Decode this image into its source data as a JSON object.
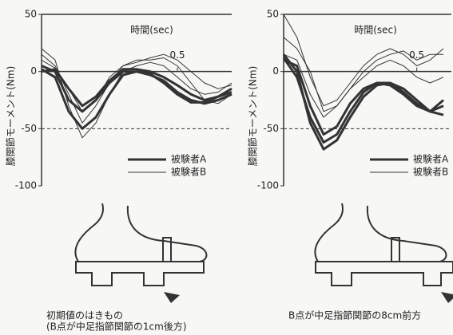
{
  "chart_data": [
    {
      "type": "line",
      "x_label": "時間(sec)",
      "y_label": "膝関節モーメント(Nm)",
      "xlim": [
        0,
        0.7
      ],
      "xticks": [
        0.5
      ],
      "ylim": [
        -100,
        50
      ],
      "yticks": [
        50,
        0,
        -50,
        -100
      ],
      "ref_line": -50,
      "legend": "lower right",
      "x": [
        0,
        0.05,
        0.1,
        0.15,
        0.2,
        0.25,
        0.3,
        0.35,
        0.4,
        0.45,
        0.5,
        0.55,
        0.6,
        0.65,
        0.7
      ],
      "series": [
        {
          "name": "被験者A",
          "color": "#333333",
          "width": 3,
          "curves": [
            [
              5,
              0,
              -25,
              -35,
              -25,
              -10,
              0,
              0,
              -3,
              -8,
              -18,
              -25,
              -28,
              -25,
              -20
            ],
            [
              2,
              -5,
              -35,
              -50,
              -40,
              -20,
              -3,
              0,
              -2,
              -10,
              -20,
              -27,
              -27,
              -22,
              -18
            ],
            [
              0,
              2,
              -15,
              -30,
              -22,
              -8,
              2,
              2,
              0,
              -5,
              -12,
              -20,
              -25,
              -22,
              -15
            ]
          ]
        },
        {
          "name": "被験者B",
          "color": "#333333",
          "width": 1,
          "curves": [
            [
              20,
              10,
              -30,
              -58,
              -45,
              -20,
              0,
              5,
              8,
              5,
              -5,
              -15,
              -20,
              -18,
              -10
            ],
            [
              15,
              5,
              -20,
              -45,
              -30,
              -10,
              5,
              8,
              12,
              15,
              10,
              0,
              -10,
              -15,
              -12
            ],
            [
              10,
              3,
              -15,
              -35,
              -25,
              -5,
              5,
              10,
              10,
              12,
              5,
              -10,
              -25,
              -28,
              -20
            ]
          ]
        }
      ],
      "caption": [
        "初期値のはきもの",
        "(B点が中足指節関節の1cm後方)"
      ]
    },
    {
      "type": "line",
      "x_label": "時間(sec)",
      "y_label": "膝関節モーメント(Nm)",
      "xlim": [
        0,
        0.63
      ],
      "xticks": [
        0.5
      ],
      "ylim": [
        -100,
        50
      ],
      "yticks": [
        50,
        0,
        -50,
        -100
      ],
      "ref_line": -50,
      "legend": "lower right",
      "x": [
        0,
        0.05,
        0.1,
        0.15,
        0.2,
        0.25,
        0.3,
        0.35,
        0.4,
        0.45,
        0.5,
        0.55,
        0.6
      ],
      "series": [
        {
          "name": "被験者A",
          "color": "#333333",
          "width": 3,
          "curves": [
            [
              15,
              0,
              -45,
              -68,
              -60,
              -40,
              -22,
              -12,
              -10,
              -15,
              -25,
              -35,
              -38
            ],
            [
              12,
              -5,
              -40,
              -62,
              -55,
              -35,
              -18,
              -10,
              -10,
              -18,
              -28,
              -35,
              -30
            ],
            [
              10,
              5,
              -30,
              -55,
              -48,
              -28,
              -15,
              -10,
              -12,
              -20,
              -30,
              -35,
              -25
            ]
          ]
        },
        {
          "name": "被験者B",
          "color": "#333333",
          "width": 1,
          "curves": [
            [
              50,
              30,
              -5,
              -30,
              -25,
              -10,
              5,
              15,
              20,
              15,
              5,
              10,
              20
            ],
            [
              30,
              20,
              0,
              -35,
              -30,
              -15,
              0,
              10,
              15,
              18,
              10,
              15,
              15
            ],
            [
              15,
              10,
              -20,
              -40,
              -30,
              -15,
              -5,
              5,
              10,
              5,
              -5,
              -10,
              -5
            ]
          ]
        }
      ],
      "caption": [
        "B点が中足指節関節の8cm前方"
      ]
    }
  ]
}
